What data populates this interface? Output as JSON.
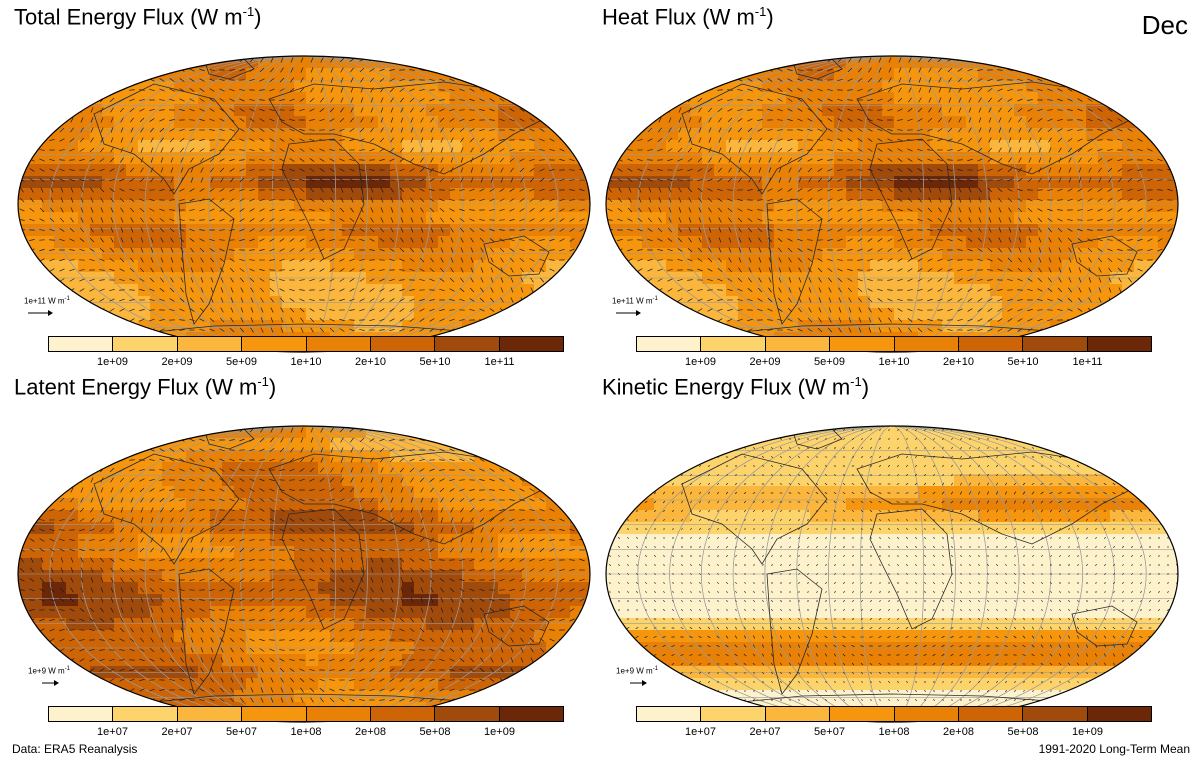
{
  "month": "Dec",
  "footer": {
    "left": "Data: ERA5 Reanalysis",
    "right": "1991-2020 Long-Term Mean"
  },
  "palette": [
    "#fdf2cc",
    "#fdd36b",
    "#fbb63d",
    "#f5960e",
    "#e88105",
    "#cd6506",
    "#a04a0c",
    "#6b2708"
  ],
  "panels": [
    {
      "id": "total",
      "title": "Total Energy Flux (W m",
      "unit_sup": "-1",
      "title_close": ")",
      "ref_label": "1e+11 W m",
      "ticks": [
        "1e+09",
        "2e+09",
        "5e+09",
        "1e+10",
        "2e+10",
        "5e+10",
        "1e+11"
      ],
      "style": "heavy"
    },
    {
      "id": "heat",
      "title": "Heat Flux (W m",
      "unit_sup": "-1",
      "title_close": ")",
      "ref_label": "1e+11 W m",
      "ticks": [
        "1e+09",
        "2e+09",
        "5e+09",
        "1e+10",
        "2e+10",
        "5e+10",
        "1e+11"
      ],
      "style": "heavy"
    },
    {
      "id": "latent",
      "title": "Latent Energy Flux (W m",
      "unit_sup": "-1",
      "title_close": ")",
      "ref_label": "1e+9 W m",
      "ticks": [
        "1e+07",
        "2e+07",
        "5e+07",
        "1e+08",
        "2e+08",
        "5e+08",
        "1e+09"
      ],
      "style": "latent"
    },
    {
      "id": "kinetic",
      "title": "Kinetic Energy Flux (W m",
      "unit_sup": "-1",
      "title_close": ")",
      "ref_label": "1e+9 W m",
      "ticks": [
        "1e+07",
        "2e+07",
        "5e+07",
        "1e+08",
        "2e+08",
        "5e+08",
        "1e+09"
      ],
      "style": "kinetic"
    }
  ]
}
